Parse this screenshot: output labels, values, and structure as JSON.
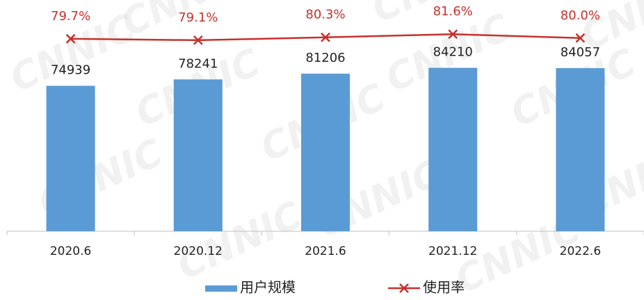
{
  "chart_data": {
    "type": "bar",
    "watermark": "CNNIC",
    "categories": [
      "2020.6",
      "2020.12",
      "2021.6",
      "2021.12",
      "2022.6"
    ],
    "series": [
      {
        "name": "用户规模",
        "type": "bar",
        "color": "#5b9bd5",
        "values": [
          74939,
          78241,
          81206,
          84210,
          84057
        ]
      },
      {
        "name": "使用率",
        "type": "line",
        "axis": "y2",
        "color": "#c8302c",
        "values": [
          79.7,
          79.1,
          80.3,
          81.6,
          80.0
        ],
        "value_labels": [
          "79.7%",
          "79.1%",
          "80.3%",
          "81.6%",
          "80.0%"
        ]
      }
    ],
    "ylim": [
      0,
      112000
    ],
    "y2lim": [
      0,
      90
    ],
    "legend": "bottom"
  }
}
